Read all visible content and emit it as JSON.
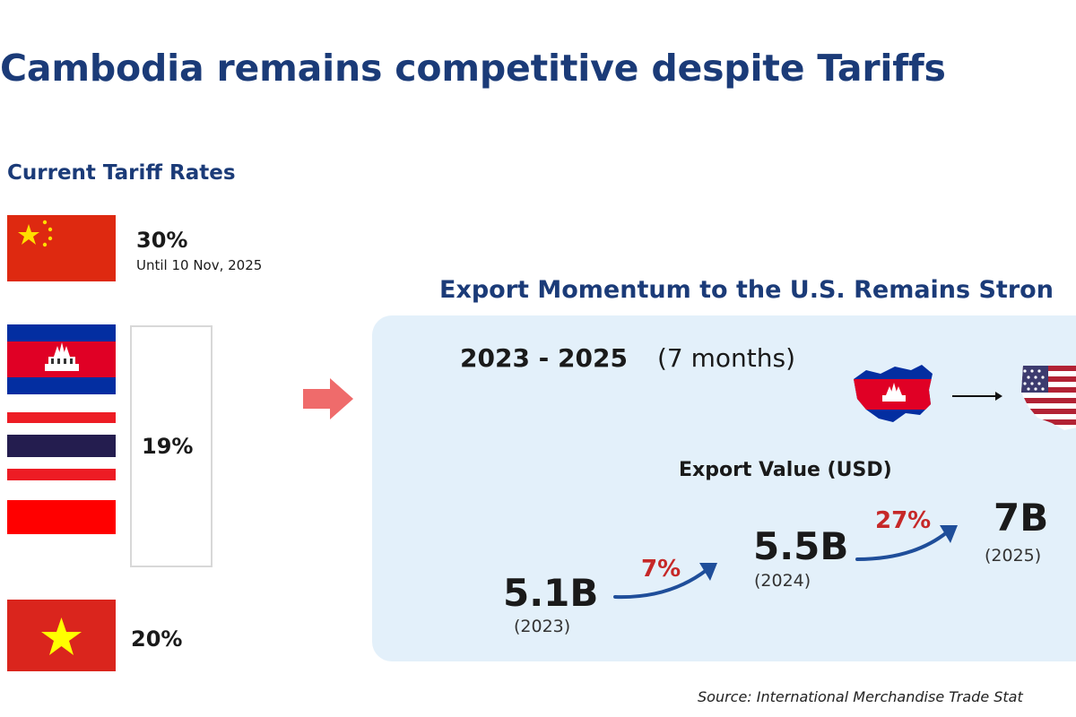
{
  "title": "Cambodia remains competitive despite Tariffs",
  "tariffs": {
    "heading": "Current Tariff Rates",
    "groups": [
      {
        "rate": "30%",
        "note": "Until 10 Nov, 2025",
        "flags": [
          "china-flag"
        ]
      },
      {
        "rate": "19%",
        "flags": [
          "cambodia-flag",
          "thailand-flag",
          "indonesia-flag"
        ]
      },
      {
        "rate": "20%",
        "flags": [
          "vietnam-flag"
        ]
      }
    ]
  },
  "export": {
    "title": "Export Momentum to the U.S. Remains Stron",
    "period_years": "2023 - 2025",
    "period_note": "(7 months)",
    "value_label": "Export Value (USD)",
    "source": "Source: International Merchandise Trade Stat"
  },
  "chart_data": {
    "type": "infographic",
    "title": "Export Momentum to the U.S. Remains Stron",
    "unit": "USD",
    "points": [
      {
        "label": "5.1B",
        "year": "(2023)",
        "value_billion_usd": 5.1
      },
      {
        "label": "5.5B",
        "year": "(2024)",
        "value_billion_usd": 5.5
      },
      {
        "label": "7B",
        "year": "(2025)",
        "value_billion_usd": 7
      }
    ],
    "growth": [
      {
        "from": "(2023)",
        "to": "(2024)",
        "label": "7%"
      },
      {
        "from": "(2024)",
        "to": "(2025)",
        "label": "27%"
      }
    ]
  },
  "colors": {
    "title": "#1b3b78",
    "growth": "#c62828",
    "panel": "#e3f0fa",
    "arrow": "#ef6b6b",
    "trend_arrow": "#1f4e9a"
  }
}
